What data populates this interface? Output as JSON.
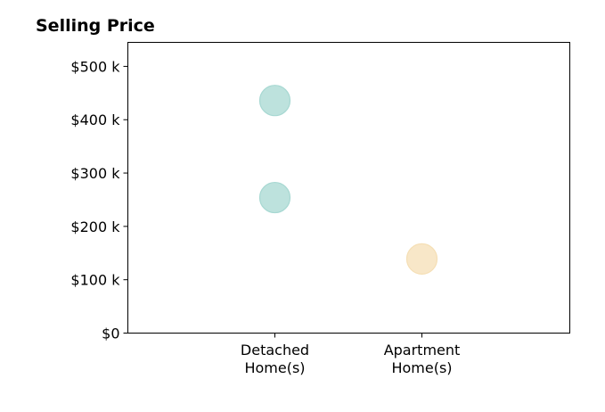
{
  "chart_data": {
    "type": "scatter",
    "title": "Selling Price",
    "xlabel": "",
    "ylabel": "",
    "categories": [
      [
        "Detached",
        "Home(s)"
      ],
      [
        "Apartment",
        "Home(s)"
      ]
    ],
    "y_ticks": [
      {
        "value": 0,
        "label": "$0"
      },
      {
        "value": 100000,
        "label": "$100 k"
      },
      {
        "value": 200000,
        "label": "$200 k"
      },
      {
        "value": 300000,
        "label": "$300 k"
      },
      {
        "value": 400000,
        "label": "$400 k"
      },
      {
        "value": 500000,
        "label": "$500 k"
      }
    ],
    "ylim": [
      0,
      545000
    ],
    "grid": false,
    "points": [
      {
        "category_index": 0,
        "y": 436000,
        "color": "#A7D8D2"
      },
      {
        "category_index": 0,
        "y": 254000,
        "color": "#A7D8D2"
      },
      {
        "category_index": 1,
        "y": 139000,
        "color": "#F5DFB5"
      }
    ]
  }
}
